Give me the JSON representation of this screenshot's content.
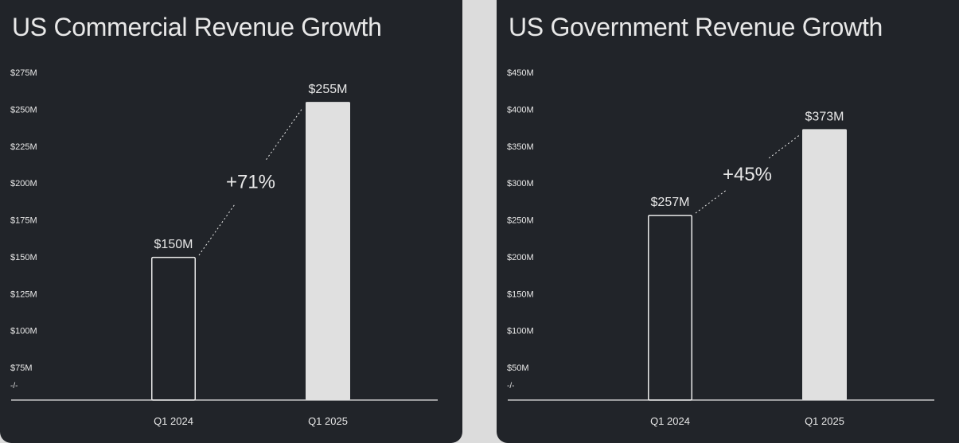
{
  "colors": {
    "background": "#dcdcdc",
    "panel": "#212429",
    "text": "#e8e8e8",
    "bar_outline": "#e8e8e8",
    "bar_filled": "#e0e0e0"
  },
  "chart_data": [
    {
      "type": "bar",
      "title": "US Commercial Revenue Growth",
      "categories": [
        "Q1 2024",
        "Q1 2025"
      ],
      "values": [
        150,
        255
      ],
      "unit": "$M",
      "data_labels": [
        "$150M",
        "$255M"
      ],
      "bar_styles": [
        "outline",
        "filled"
      ],
      "ylim": [
        75,
        275
      ],
      "y_ticks": [
        75,
        100,
        125,
        150,
        175,
        200,
        225,
        250,
        275
      ],
      "y_tick_labels": [
        "$75M",
        "$100M",
        "$125M",
        "$150M",
        "$175M",
        "$200M",
        "$225M",
        "$250M",
        "$275M"
      ],
      "axis_break": true,
      "axis_break_label": "-/-",
      "annotation": "+71%",
      "grid": false
    },
    {
      "type": "bar",
      "title": "US Government Revenue Growth",
      "categories": [
        "Q1 2024",
        "Q1 2025"
      ],
      "values": [
        257,
        373
      ],
      "unit": "$M",
      "data_labels": [
        "$257M",
        "$373M"
      ],
      "bar_styles": [
        "outline",
        "filled"
      ],
      "ylim": [
        50,
        450
      ],
      "y_ticks": [
        50,
        100,
        150,
        200,
        250,
        300,
        350,
        400,
        450
      ],
      "y_tick_labels": [
        "$50M",
        "$100M",
        "$150M",
        "$200M",
        "$250M",
        "$300M",
        "$350M",
        "$400M",
        "$450M"
      ],
      "axis_break": true,
      "axis_break_label": "-/-",
      "annotation": "+45%",
      "grid": false
    }
  ]
}
